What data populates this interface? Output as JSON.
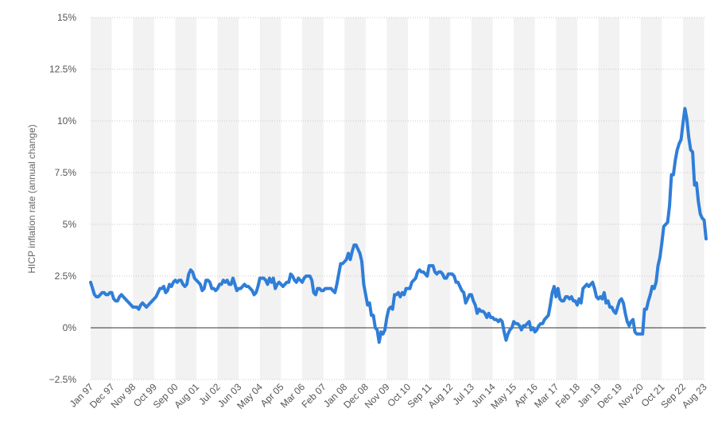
{
  "chart_data": {
    "type": "line",
    "title": "",
    "xlabel": "",
    "ylabel": "HICP inflation rate (annual change)",
    "ylim": [
      -2.5,
      15
    ],
    "yticks": [
      -2.5,
      0,
      2.5,
      5,
      7.5,
      10,
      12.5,
      15
    ],
    "ytick_labels": [
      "−2.5%",
      "0%",
      "2.5%",
      "5%",
      "7.5%",
      "10%",
      "12.5%",
      "15%"
    ],
    "grid": true,
    "legend": "none",
    "line_color": "#2f7ed8",
    "zero_line_color": "#333333",
    "band_color": "#f2f2f2",
    "x_start": "Jan 97",
    "x_end": "Aug 23",
    "xtick_labels": [
      "Jan 97",
      "Dec 97",
      "Nov 98",
      "Oct 99",
      "Sep 00",
      "Aug 01",
      "Jul 02",
      "Jun 03",
      "May 04",
      "Apr 05",
      "Mar 06",
      "Feb 07",
      "Jan 08",
      "Dec 08",
      "Nov 09",
      "Oct 10",
      "Sep 11",
      "Aug 12",
      "Jul 13",
      "Jun 14",
      "May 15",
      "Apr 16",
      "Mar 17",
      "Feb 18",
      "Jan 19",
      "Dec 19",
      "Nov 20",
      "Oct 21",
      "Sep 22",
      "Aug 23"
    ],
    "series": [
      {
        "values": [
          2.2,
          1.9,
          1.6,
          1.5,
          1.5,
          1.6,
          1.7,
          1.7,
          1.6,
          1.6,
          1.7,
          1.7,
          1.4,
          1.3,
          1.3,
          1.5,
          1.6,
          1.5,
          1.4,
          1.3,
          1.2,
          1.1,
          1.0,
          1.0,
          1.0,
          0.9,
          1.1,
          1.2,
          1.1,
          1.0,
          1.1,
          1.2,
          1.3,
          1.4,
          1.5,
          1.7,
          1.9,
          1.9,
          2.0,
          1.7,
          1.8,
          2.1,
          2.0,
          2.2,
          2.3,
          2.2,
          2.3,
          2.3,
          2.1,
          2.0,
          2.1,
          2.6,
          2.8,
          2.7,
          2.4,
          2.3,
          2.2,
          2.1,
          1.8,
          1.9,
          2.3,
          2.3,
          2.2,
          1.9,
          1.9,
          1.8,
          1.9,
          2.1,
          2.1,
          2.3,
          2.2,
          2.3,
          2.1,
          2.1,
          2.4,
          2.1,
          1.8,
          1.9,
          1.9,
          2.0,
          2.1,
          2.0,
          2.0,
          1.9,
          1.8,
          1.6,
          1.7,
          2.0,
          2.4,
          2.4,
          2.4,
          2.3,
          2.1,
          2.4,
          2.2,
          2.4,
          1.9,
          2.1,
          2.2,
          2.1,
          2.0,
          2.1,
          2.2,
          2.2,
          2.6,
          2.5,
          2.3,
          2.2,
          2.4,
          2.3,
          2.2,
          2.4,
          2.5,
          2.5,
          2.5,
          2.3,
          1.7,
          1.6,
          1.9,
          1.9,
          1.8,
          1.8,
          1.9,
          1.9,
          1.9,
          1.9,
          1.8,
          1.7,
          2.1,
          2.6,
          3.1,
          3.1,
          3.2,
          3.3,
          3.6,
          3.3,
          3.7,
          4.0,
          4.0,
          3.8,
          3.6,
          3.2,
          2.1,
          1.6,
          1.1,
          1.2,
          0.6,
          0.6,
          0.0,
          -0.1,
          -0.7,
          -0.2,
          -0.3,
          -0.1,
          0.5,
          0.9,
          1.0,
          0.9,
          1.6,
          1.6,
          1.7,
          1.5,
          1.7,
          1.6,
          1.9,
          1.9,
          1.9,
          2.2,
          2.3,
          2.4,
          2.7,
          2.8,
          2.7,
          2.7,
          2.6,
          2.5,
          3.0,
          3.0,
          3.0,
          2.7,
          2.6,
          2.7,
          2.7,
          2.6,
          2.4,
          2.4,
          2.6,
          2.6,
          2.6,
          2.5,
          2.2,
          2.2,
          2.0,
          1.8,
          1.7,
          1.2,
          1.4,
          1.6,
          1.6,
          1.3,
          1.1,
          0.7,
          0.9,
          0.8,
          0.8,
          0.7,
          0.5,
          0.7,
          0.5,
          0.5,
          0.4,
          0.4,
          0.3,
          0.4,
          0.3,
          -0.2,
          -0.6,
          -0.3,
          -0.1,
          0.0,
          0.3,
          0.2,
          0.2,
          0.1,
          -0.1,
          0.1,
          0.1,
          0.2,
          0.3,
          -0.1,
          0.0,
          -0.2,
          -0.1,
          0.1,
          0.2,
          0.2,
          0.4,
          0.5,
          0.6,
          1.1,
          1.7,
          2.0,
          1.5,
          1.9,
          1.4,
          1.3,
          1.3,
          1.5,
          1.5,
          1.4,
          1.5,
          1.3,
          1.3,
          1.1,
          1.4,
          1.2,
          1.9,
          2.0,
          2.1,
          2.0,
          2.1,
          2.2,
          1.9,
          1.5,
          1.4,
          1.5,
          1.4,
          1.7,
          1.2,
          1.3,
          1.0,
          1.0,
          0.8,
          0.7,
          1.0,
          1.3,
          1.4,
          1.2,
          0.7,
          0.3,
          0.1,
          0.3,
          0.4,
          -0.2,
          -0.3,
          -0.3,
          -0.3,
          -0.3,
          0.9,
          0.9,
          1.3,
          1.6,
          2.0,
          1.9,
          2.2,
          3.0,
          3.4,
          4.1,
          4.9,
          5.0,
          5.1,
          5.9,
          7.4,
          7.4,
          8.1,
          8.6,
          8.9,
          9.1,
          9.9,
          10.6,
          10.1,
          9.2,
          8.6,
          8.5,
          6.9,
          7.0,
          6.1,
          5.5,
          5.3,
          5.2,
          4.3
        ]
      }
    ]
  }
}
